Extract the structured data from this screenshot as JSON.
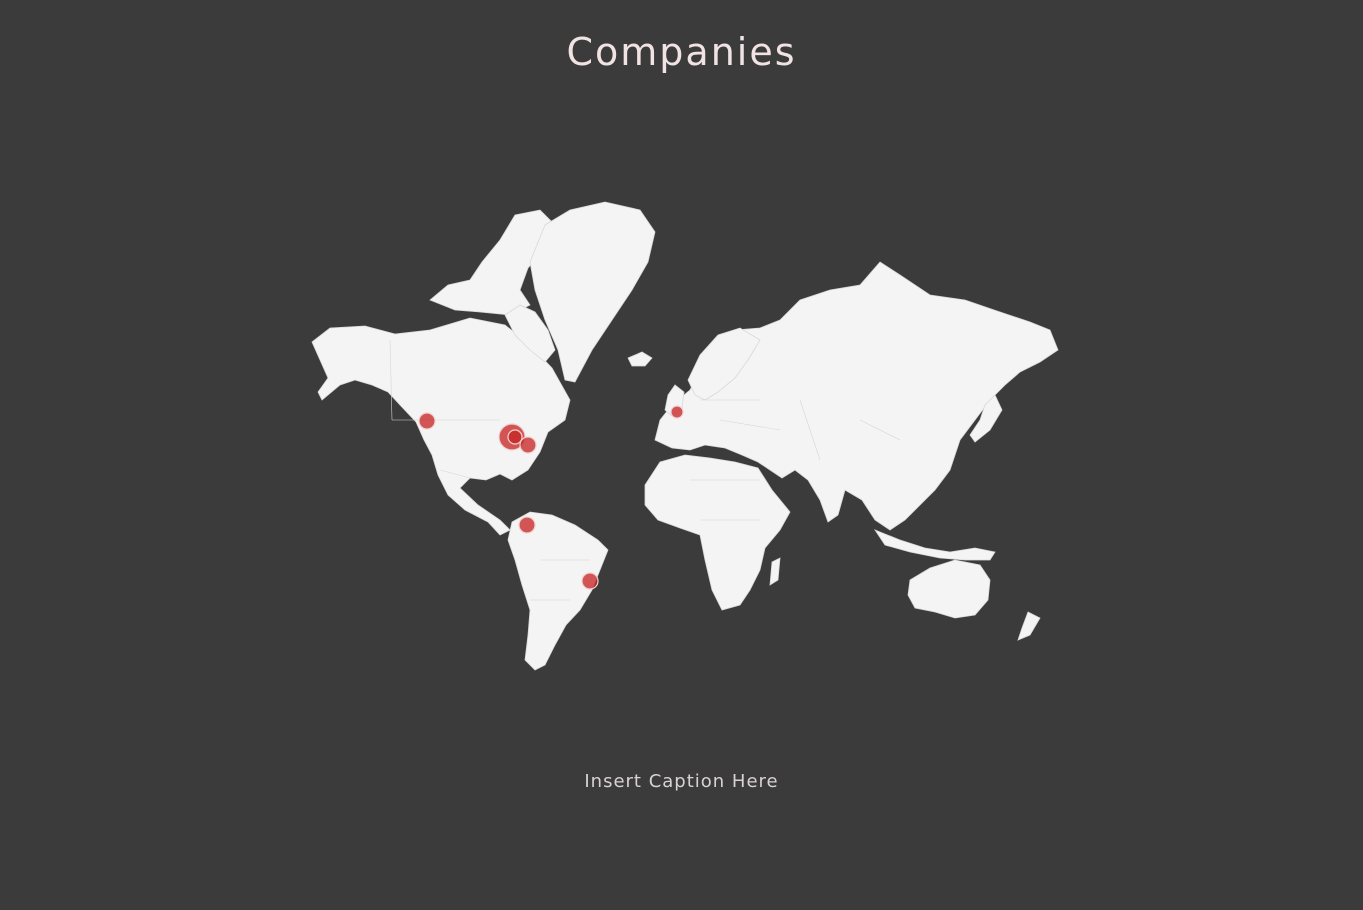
{
  "header": {
    "title": "Companies"
  },
  "footer": {
    "caption": "Insert Caption Here"
  },
  "colors": {
    "background": "#3b3b3b",
    "land": "#f4f4f4",
    "marker": "#c62828"
  }
}
